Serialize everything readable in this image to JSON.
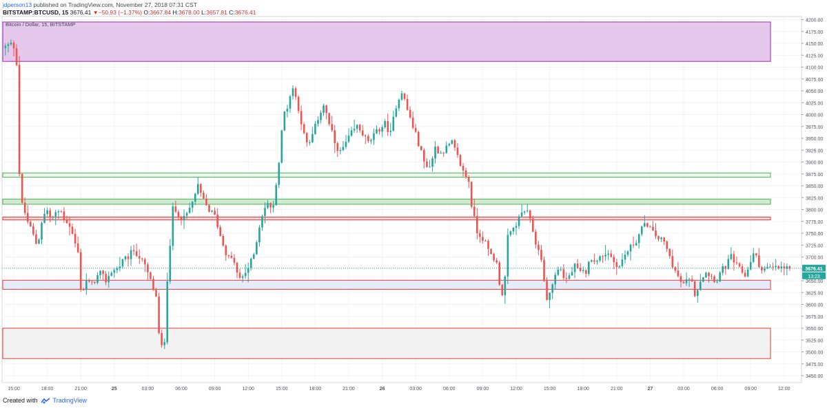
{
  "header": {
    "author": "jdperson13",
    "published": "published on TradingView.com, November 27, 2018 07:31 CST",
    "symbol": "BITSTAMP:BTCUSD, 15",
    "last": "3676.41",
    "change": "−50.93 (−1.37%)",
    "open_label": "O:",
    "open": "3667.84",
    "high_label": "H:",
    "high": "3678.00",
    "low_label": "L:",
    "low": "3657.81",
    "close_label": "C:",
    "close": "3676.41"
  },
  "chart_data": {
    "type": "candlestick",
    "title": "Bitcoin / Dollar, 15, BITSTAMP",
    "price_ticks": [
      "4200.00",
      "4175.00",
      "4150.00",
      "4125.00",
      "4100.00",
      "4075.00",
      "4050.00",
      "4025.00",
      "4000.00",
      "3975.00",
      "3950.00",
      "3925.00",
      "3900.00",
      "3875.00",
      "3850.00",
      "3825.00",
      "3800.00",
      "3775.00",
      "3750.00",
      "3725.00",
      "3700.00",
      "3675.00",
      "3650.00",
      "3625.00",
      "3600.00",
      "3575.00",
      "3550.00",
      "3525.00",
      "3500.00",
      "3475.00",
      "3450.00"
    ],
    "time_ticks": [
      "15:00",
      "18:00",
      "21:00",
      "25",
      "03:00",
      "06:00",
      "09:00",
      "12:00",
      "15:00",
      "18:00",
      "21:00",
      "26",
      "03:00",
      "06:00",
      "09:00",
      "12:00",
      "15:00",
      "18:00",
      "21:00",
      "27",
      "03:00",
      "06:00",
      "09:00",
      "12:00"
    ],
    "time_tick_hours": [
      0,
      3,
      6,
      9,
      12,
      15,
      18,
      21,
      24,
      27,
      30,
      33,
      36,
      39,
      42,
      45,
      48,
      51,
      54,
      57,
      60,
      63,
      66,
      69
    ],
    "ylim": [
      3440,
      4205
    ],
    "last_price": "3676.41",
    "countdown": "13:23",
    "zones": [
      {
        "name": "zone-supply-top",
        "low": 4112,
        "high": 4195,
        "fill": "#e1bee7",
        "stroke": "#9c27b0"
      },
      {
        "name": "zone-resistance-green-1",
        "low": 3868,
        "high": 3877,
        "fill": "#e8f5e9",
        "stroke": "#4caf50"
      },
      {
        "name": "zone-resistance-green-2",
        "low": 3811,
        "high": 3822,
        "fill": "#c8e6c9",
        "stroke": "#4caf50"
      },
      {
        "name": "zone-resistance-red",
        "low": 3778,
        "high": 3784,
        "fill": "#ffcdd2",
        "stroke": "#e53935"
      },
      {
        "name": "zone-support-blue",
        "low": 3632,
        "high": 3651,
        "fill": "#e3e8f8",
        "stroke": "#e53935"
      },
      {
        "name": "zone-demand-bottom",
        "low": 3486,
        "high": 3550,
        "fill": "#f0f0f0",
        "stroke": "#e53935"
      }
    ],
    "candle_hours": [
      -0.75,
      69.6
    ],
    "anchors": [
      [
        -0.7,
        4140
      ],
      [
        -0.3,
        4145
      ],
      [
        0.2,
        4150
      ],
      [
        0.5,
        4110
      ],
      [
        0.8,
        3830
      ],
      [
        1.0,
        3810
      ],
      [
        1.5,
        3775
      ],
      [
        2.0,
        3745
      ],
      [
        2.4,
        3720
      ],
      [
        2.6,
        3760
      ],
      [
        2.8,
        3780
      ],
      [
        3.2,
        3800
      ],
      [
        3.6,
        3780
      ],
      [
        4.0,
        3790
      ],
      [
        4.4,
        3800
      ],
      [
        4.8,
        3780
      ],
      [
        5.2,
        3770
      ],
      [
        5.6,
        3740
      ],
      [
        6.1,
        3700
      ],
      [
        6.3,
        3615
      ],
      [
        6.7,
        3650
      ],
      [
        7.2,
        3640
      ],
      [
        7.6,
        3655
      ],
      [
        8.0,
        3665
      ],
      [
        8.5,
        3650
      ],
      [
        9.0,
        3670
      ],
      [
        9.5,
        3675
      ],
      [
        10.0,
        3690
      ],
      [
        10.5,
        3700
      ],
      [
        11.0,
        3715
      ],
      [
        11.5,
        3700
      ],
      [
        12.0,
        3680
      ],
      [
        12.5,
        3650
      ],
      [
        13.0,
        3615
      ],
      [
        13.3,
        3520
      ],
      [
        13.7,
        3500
      ],
      [
        14.0,
        3655
      ],
      [
        14.5,
        3800
      ],
      [
        15.0,
        3790
      ],
      [
        15.5,
        3780
      ],
      [
        16.2,
        3810
      ],
      [
        16.7,
        3850
      ],
      [
        17.2,
        3820
      ],
      [
        17.7,
        3800
      ],
      [
        18.3,
        3785
      ],
      [
        18.8,
        3740
      ],
      [
        19.4,
        3700
      ],
      [
        20.0,
        3690
      ],
      [
        20.4,
        3650
      ],
      [
        20.8,
        3660
      ],
      [
        21.3,
        3680
      ],
      [
        21.7,
        3700
      ],
      [
        22.2,
        3760
      ],
      [
        22.6,
        3800
      ],
      [
        23.0,
        3810
      ],
      [
        23.5,
        3805
      ],
      [
        23.7,
        3850
      ],
      [
        24.0,
        3900
      ],
      [
        24.4,
        4000
      ],
      [
        24.8,
        4020
      ],
      [
        25.2,
        4060
      ],
      [
        25.7,
        4020
      ],
      [
        26.2,
        3960
      ],
      [
        26.6,
        3930
      ],
      [
        27.2,
        3970
      ],
      [
        27.6,
        4000
      ],
      [
        28.0,
        4020
      ],
      [
        28.5,
        3980
      ],
      [
        29.0,
        3940
      ],
      [
        29.5,
        3920
      ],
      [
        30.0,
        3940
      ],
      [
        30.5,
        3960
      ],
      [
        31.0,
        3975
      ],
      [
        31.5,
        3960
      ],
      [
        32.0,
        3940
      ],
      [
        32.5,
        3955
      ],
      [
        33.0,
        3970
      ],
      [
        33.5,
        3980
      ],
      [
        34.0,
        3960
      ],
      [
        34.5,
        4020
      ],
      [
        35.0,
        4050
      ],
      [
        35.5,
        4010
      ],
      [
        36.0,
        3975
      ],
      [
        36.5,
        3940
      ],
      [
        37.0,
        3900
      ],
      [
        37.5,
        3890
      ],
      [
        38.0,
        3930
      ],
      [
        38.5,
        3920
      ],
      [
        39.0,
        3930
      ],
      [
        39.5,
        3940
      ],
      [
        40.0,
        3910
      ],
      [
        40.5,
        3880
      ],
      [
        41.0,
        3860
      ],
      [
        41.3,
        3800
      ],
      [
        41.8,
        3750
      ],
      [
        42.3,
        3740
      ],
      [
        42.8,
        3710
      ],
      [
        43.2,
        3700
      ],
      [
        43.6,
        3680
      ],
      [
        43.9,
        3615
      ],
      [
        44.2,
        3640
      ],
      [
        44.5,
        3740
      ],
      [
        45.0,
        3760
      ],
      [
        45.5,
        3780
      ],
      [
        45.9,
        3800
      ],
      [
        46.3,
        3790
      ],
      [
        46.7,
        3760
      ],
      [
        47.1,
        3720
      ],
      [
        47.5,
        3700
      ],
      [
        47.9,
        3610
      ],
      [
        48.3,
        3625
      ],
      [
        48.7,
        3660
      ],
      [
        49.2,
        3680
      ],
      [
        49.6,
        3650
      ],
      [
        50.0,
        3660
      ],
      [
        50.5,
        3680
      ],
      [
        51.0,
        3665
      ],
      [
        51.5,
        3670
      ],
      [
        52.0,
        3700
      ],
      [
        52.5,
        3690
      ],
      [
        53.0,
        3705
      ],
      [
        53.5,
        3710
      ],
      [
        54.0,
        3690
      ],
      [
        54.5,
        3680
      ],
      [
        55.0,
        3705
      ],
      [
        55.5,
        3720
      ],
      [
        56.0,
        3735
      ],
      [
        56.5,
        3760
      ],
      [
        57.0,
        3770
      ],
      [
        57.5,
        3750
      ],
      [
        58.0,
        3740
      ],
      [
        58.5,
        3730
      ],
      [
        59.0,
        3700
      ],
      [
        59.5,
        3670
      ],
      [
        59.9,
        3650
      ],
      [
        60.3,
        3640
      ],
      [
        60.8,
        3660
      ],
      [
        61.3,
        3620
      ],
      [
        61.7,
        3650
      ],
      [
        62.2,
        3670
      ],
      [
        62.7,
        3660
      ],
      [
        63.2,
        3650
      ],
      [
        63.6,
        3670
      ],
      [
        64.0,
        3680
      ],
      [
        64.5,
        3700
      ],
      [
        65.0,
        3680
      ],
      [
        65.4,
        3670
      ],
      [
        65.8,
        3660
      ],
      [
        66.2,
        3690
      ],
      [
        66.6,
        3710
      ],
      [
        67.0,
        3680
      ],
      [
        67.4,
        3676.41
      ]
    ]
  },
  "footer": {
    "created_with": "Created with",
    "brand": "TradingView"
  }
}
